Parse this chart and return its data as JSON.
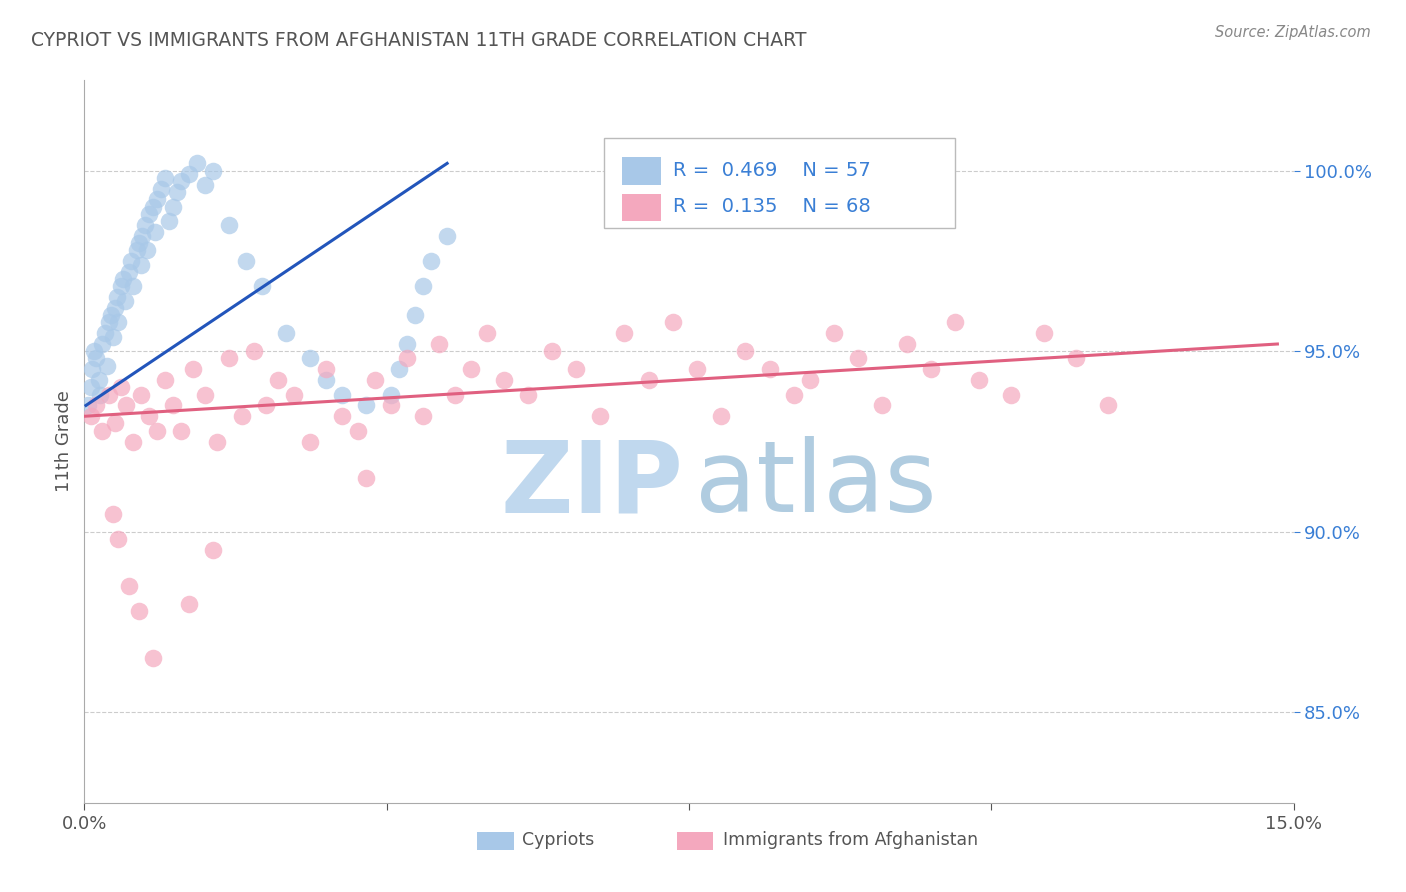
{
  "title": "CYPRIOT VS IMMIGRANTS FROM AFGHANISTAN 11TH GRADE CORRELATION CHART",
  "source_text": "Source: ZipAtlas.com",
  "ylabel": "11th Grade",
  "xlim": [
    0.0,
    15.0
  ],
  "ylim": [
    82.5,
    102.5
  ],
  "series1_color": "#a8c8e8",
  "series2_color": "#f4a8be",
  "line1_color": "#2255bb",
  "line2_color": "#e06080",
  "background_color": "#ffffff",
  "grid_color": "#cccccc",
  "legend_R1": "0.469",
  "legend_N1": "57",
  "legend_R2": "0.135",
  "legend_N2": "68",
  "legend_text_color": "#3a7fd5",
  "title_color": "#555555",
  "watermark_zip_color": "#c8dff0",
  "watermark_atlas_color": "#b8d0e8",
  "ytick_vals": [
    85.0,
    90.0,
    95.0,
    100.0
  ],
  "cypriot_x": [
    0.05,
    0.08,
    0.1,
    0.12,
    0.15,
    0.18,
    0.2,
    0.22,
    0.25,
    0.28,
    0.3,
    0.33,
    0.35,
    0.38,
    0.4,
    0.42,
    0.45,
    0.48,
    0.5,
    0.55,
    0.58,
    0.6,
    0.65,
    0.68,
    0.7,
    0.72,
    0.75,
    0.78,
    0.8,
    0.85,
    0.88,
    0.9,
    0.95,
    1.0,
    1.05,
    1.1,
    1.15,
    1.2,
    1.3,
    1.4,
    1.5,
    1.6,
    1.8,
    2.0,
    2.2,
    2.5,
    2.8,
    3.0,
    3.2,
    3.5,
    3.8,
    3.9,
    4.0,
    4.1,
    4.2,
    4.3,
    4.5
  ],
  "cypriot_y": [
    93.5,
    94.0,
    94.5,
    95.0,
    94.8,
    94.2,
    93.8,
    95.2,
    95.5,
    94.6,
    95.8,
    96.0,
    95.4,
    96.2,
    96.5,
    95.8,
    96.8,
    97.0,
    96.4,
    97.2,
    97.5,
    96.8,
    97.8,
    98.0,
    97.4,
    98.2,
    98.5,
    97.8,
    98.8,
    99.0,
    98.3,
    99.2,
    99.5,
    99.8,
    98.6,
    99.0,
    99.4,
    99.7,
    99.9,
    100.2,
    99.6,
    100.0,
    98.5,
    97.5,
    96.8,
    95.5,
    94.8,
    94.2,
    93.8,
    93.5,
    93.8,
    94.5,
    95.2,
    96.0,
    96.8,
    97.5,
    98.2
  ],
  "afghan_x": [
    0.08,
    0.15,
    0.22,
    0.3,
    0.38,
    0.45,
    0.52,
    0.6,
    0.7,
    0.8,
    0.9,
    1.0,
    1.1,
    1.2,
    1.35,
    1.5,
    1.65,
    1.8,
    1.95,
    2.1,
    2.25,
    2.4,
    2.6,
    2.8,
    3.0,
    3.2,
    3.4,
    3.6,
    3.8,
    4.0,
    4.2,
    4.4,
    4.6,
    4.8,
    5.0,
    5.2,
    5.5,
    5.8,
    6.1,
    6.4,
    6.7,
    7.0,
    7.3,
    7.6,
    7.9,
    8.2,
    8.5,
    8.8,
    9.0,
    9.3,
    9.6,
    9.9,
    10.2,
    10.5,
    10.8,
    11.1,
    11.5,
    11.9,
    12.3,
    12.7,
    3.5,
    0.35,
    0.42,
    0.55,
    0.68,
    0.85,
    1.3,
    1.6
  ],
  "afghan_y": [
    93.2,
    93.5,
    92.8,
    93.8,
    93.0,
    94.0,
    93.5,
    92.5,
    93.8,
    93.2,
    92.8,
    94.2,
    93.5,
    92.8,
    94.5,
    93.8,
    92.5,
    94.8,
    93.2,
    95.0,
    93.5,
    94.2,
    93.8,
    92.5,
    94.5,
    93.2,
    92.8,
    94.2,
    93.5,
    94.8,
    93.2,
    95.2,
    93.8,
    94.5,
    95.5,
    94.2,
    93.8,
    95.0,
    94.5,
    93.2,
    95.5,
    94.2,
    95.8,
    94.5,
    93.2,
    95.0,
    94.5,
    93.8,
    94.2,
    95.5,
    94.8,
    93.5,
    95.2,
    94.5,
    95.8,
    94.2,
    93.8,
    95.5,
    94.8,
    93.5,
    91.5,
    90.5,
    89.8,
    88.5,
    87.8,
    86.5,
    88.0,
    89.5
  ],
  "line1_x": [
    0.02,
    4.5
  ],
  "line1_y": [
    93.5,
    100.2
  ],
  "line2_x": [
    0.0,
    14.8
  ],
  "line2_y": [
    93.2,
    95.2
  ]
}
